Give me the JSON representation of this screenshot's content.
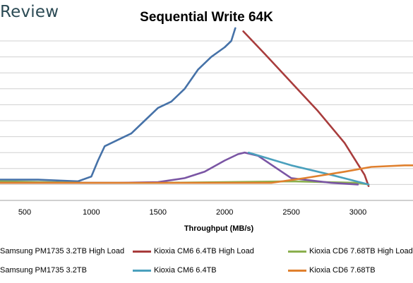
{
  "brand": "Review",
  "chart_data": {
    "type": "line",
    "title": "Sequential Write 64K",
    "xlabel": "Throughput (MB/s)",
    "ylabel": "",
    "x_ticks": [
      500,
      1000,
      1500,
      2000,
      2500,
      3000
    ],
    "x_range": [
      300,
      3500
    ],
    "y_range": [
      0,
      100
    ],
    "grid": true,
    "legend_position": "bottom",
    "series": [
      {
        "name": "Samsung PM1735 3.2TB High Load",
        "color": "#4672a8",
        "points": [
          [
            300,
            13
          ],
          [
            600,
            13
          ],
          [
            900,
            12
          ],
          [
            1000,
            15
          ],
          [
            1050,
            25
          ],
          [
            1100,
            34
          ],
          [
            1200,
            38
          ],
          [
            1300,
            42
          ],
          [
            1400,
            50
          ],
          [
            1500,
            58
          ],
          [
            1600,
            62
          ],
          [
            1700,
            70
          ],
          [
            1800,
            82
          ],
          [
            1900,
            90
          ],
          [
            2000,
            96
          ],
          [
            2050,
            100
          ],
          [
            2080,
            108
          ]
        ]
      },
      {
        "name": "Kioxia CM6 6.4TB High Load",
        "color": "#a83c3c",
        "points": [
          [
            2140,
            106
          ],
          [
            2300,
            92
          ],
          [
            2500,
            74
          ],
          [
            2700,
            56
          ],
          [
            2900,
            36
          ],
          [
            3050,
            16
          ],
          [
            3080,
            9
          ]
        ]
      },
      {
        "name": "Kioxia CD6 7.68TB High Load",
        "color": "#8bb04f",
        "points": [
          [
            300,
            12
          ],
          [
            1000,
            11
          ],
          [
            1500,
            11
          ],
          [
            2000,
            11.5
          ],
          [
            2500,
            12
          ],
          [
            3000,
            11
          ],
          [
            3080,
            10
          ]
        ]
      },
      {
        "name": "Samsung PM1735 3.2TB",
        "color": "#7a55a4",
        "points": [
          [
            300,
            11
          ],
          [
            800,
            11
          ],
          [
            1200,
            11
          ],
          [
            1500,
            11.5
          ],
          [
            1700,
            14
          ],
          [
            1850,
            18
          ],
          [
            2000,
            25
          ],
          [
            2100,
            29
          ],
          [
            2150,
            30
          ],
          [
            2250,
            28
          ],
          [
            2500,
            14
          ],
          [
            2800,
            11
          ],
          [
            3000,
            10
          ]
        ]
      },
      {
        "name": "Kioxia CM6 6.4TB",
        "color": "#4aa0bd",
        "points": [
          [
            2180,
            30
          ],
          [
            2500,
            22
          ],
          [
            2800,
            16
          ],
          [
            3080,
            10
          ]
        ]
      },
      {
        "name": "Kioxia CD6 7.68TB",
        "color": "#e0802e",
        "points": [
          [
            300,
            11
          ],
          [
            1000,
            11
          ],
          [
            1500,
            11
          ],
          [
            2000,
            11
          ],
          [
            2350,
            11
          ],
          [
            2600,
            14
          ],
          [
            2900,
            18
          ],
          [
            3100,
            21
          ],
          [
            3350,
            22
          ],
          [
            3500,
            22
          ]
        ]
      }
    ]
  }
}
